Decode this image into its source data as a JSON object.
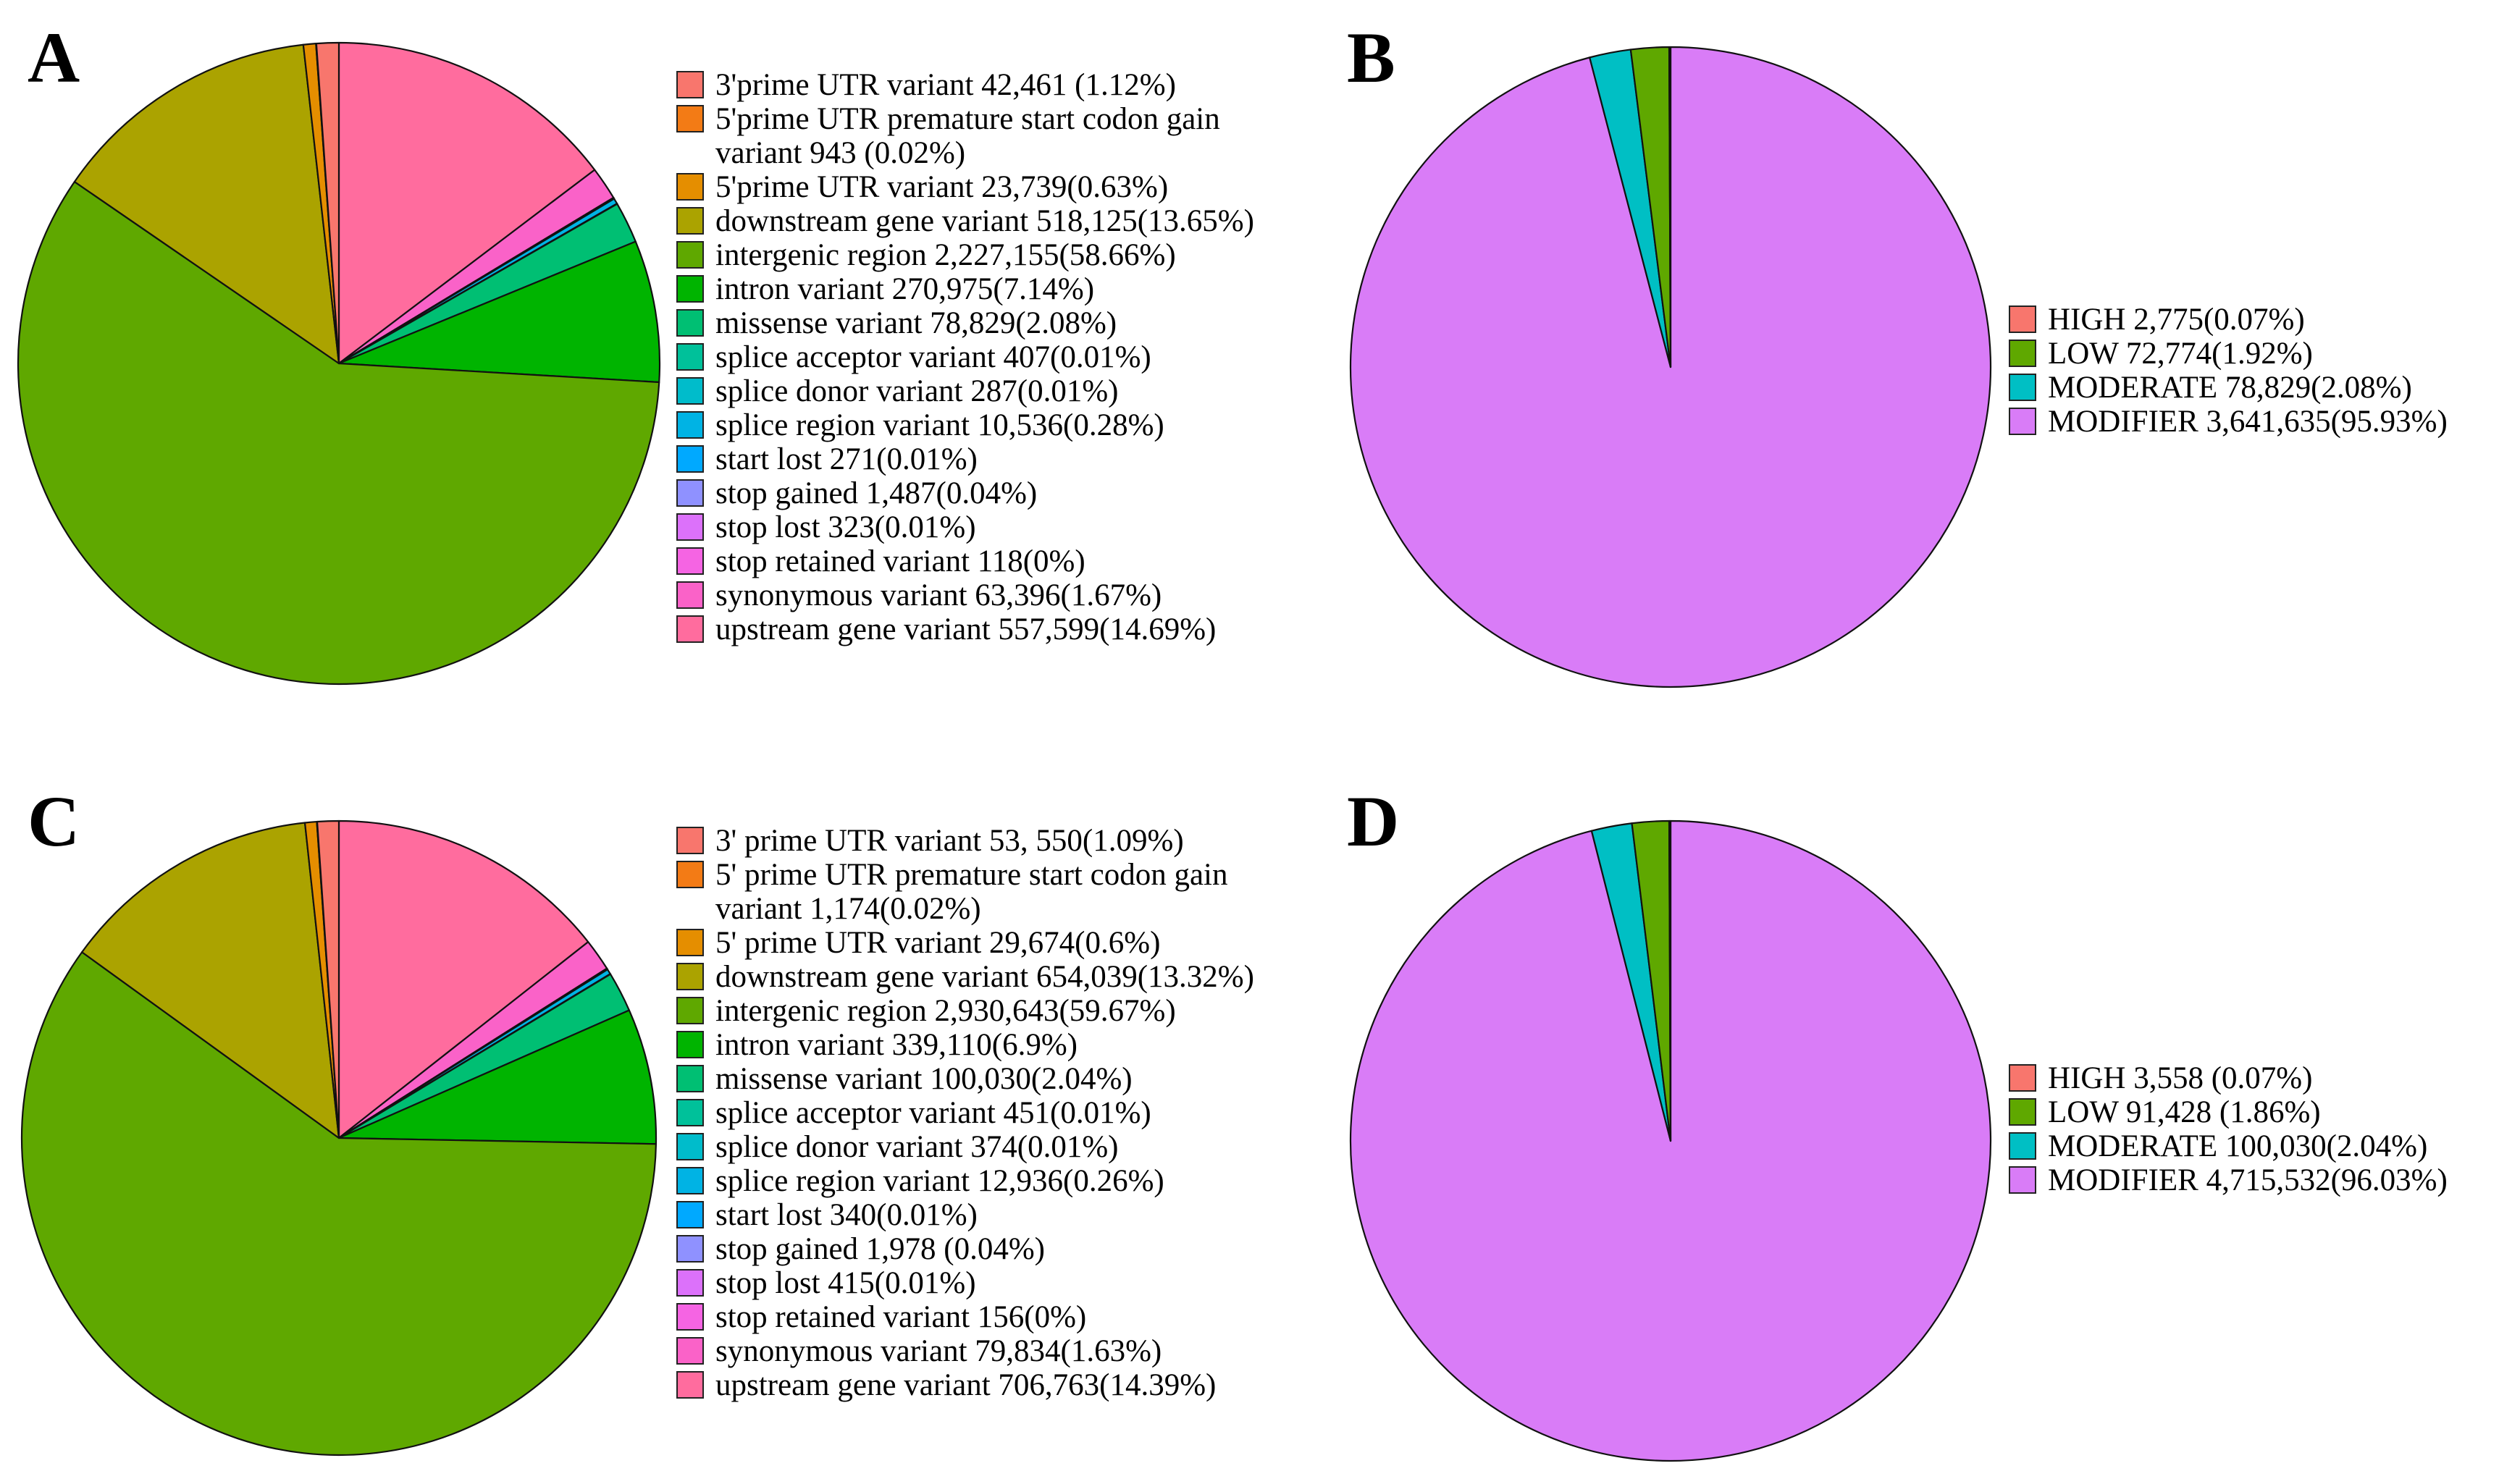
{
  "chart_data": [
    {
      "panel": "A",
      "type": "pie",
      "slices": [
        {
          "label": "3'prime UTR variant 42,461 (1.12%)",
          "value": 1.12,
          "color": "#F8766D"
        },
        {
          "label": "5'prime UTR premature start codon gain variant 943 (0.02%)",
          "value": 0.02,
          "color": "#F37B15"
        },
        {
          "label": "5'prime UTR variant 23,739(0.63%)",
          "value": 0.63,
          "color": "#E58E00"
        },
        {
          "label": "downstream gene variant 518,125(13.65%)",
          "value": 13.65,
          "color": "#ABA300"
        },
        {
          "label": "intergenic region 2,227,155(58.66%)",
          "value": 58.66,
          "color": "#5FA800"
        },
        {
          "label": "intron variant 270,975(7.14%)",
          "value": 7.14,
          "color": "#00B400"
        },
        {
          "label": "missense variant 78,829(2.08%)",
          "value": 2.08,
          "color": "#00BF73"
        },
        {
          "label": "splice acceptor variant 407(0.01%)",
          "value": 0.01,
          "color": "#00C19A"
        },
        {
          "label": "splice donor variant 287(0.01%)",
          "value": 0.01,
          "color": "#00BCCB"
        },
        {
          "label": "splice region variant 10,536(0.28%)",
          "value": 0.28,
          "color": "#00B3E4"
        },
        {
          "label": "start lost 271(0.01%)",
          "value": 0.01,
          "color": "#00A9FF"
        },
        {
          "label": "stop gained 1,487(0.04%)",
          "value": 0.04,
          "color": "#8F91FF"
        },
        {
          "label": "stop lost 323(0.01%)",
          "value": 0.01,
          "color": "#DC71FA"
        },
        {
          "label": "stop retained variant 118(0%)",
          "value": 0.0,
          "color": "#F564E3"
        },
        {
          "label": "synonymous variant 63,396(1.67%)",
          "value": 1.67,
          "color": "#FA62C8"
        },
        {
          "label": "upstream gene variant 557,599(14.69%)",
          "value": 14.69,
          "color": "#FF6C9E"
        }
      ]
    },
    {
      "panel": "B",
      "type": "pie",
      "slices": [
        {
          "label": "HIGH 2,775(0.07%)",
          "value": 0.07,
          "color": "#F8766D"
        },
        {
          "label": "LOW 72,774(1.92%)",
          "value": 1.92,
          "color": "#5FA800"
        },
        {
          "label": "MODERATE 78,829(2.08%)",
          "value": 2.08,
          "color": "#00BFC4"
        },
        {
          "label": "MODIFIER 3,641,635(95.93%)",
          "value": 95.93,
          "color": "#D97CF7"
        }
      ]
    },
    {
      "panel": "C",
      "type": "pie",
      "slices": [
        {
          "label": "3' prime UTR variant 53, 550(1.09%)",
          "value": 1.09,
          "color": "#F8766D"
        },
        {
          "label": "5' prime UTR premature start codon gain variant 1,174(0.02%)",
          "value": 0.02,
          "color": "#F37B15"
        },
        {
          "label": "5' prime UTR variant 29,674(0.6%)",
          "value": 0.6,
          "color": "#E58E00"
        },
        {
          "label": "downstream gene variant 654,039(13.32%)",
          "value": 13.32,
          "color": "#ABA300"
        },
        {
          "label": "intergenic region 2,930,643(59.67%)",
          "value": 59.67,
          "color": "#5FA800"
        },
        {
          "label": "intron variant 339,110(6.9%)",
          "value": 6.9,
          "color": "#00B400"
        },
        {
          "label": "missense variant 100,030(2.04%)",
          "value": 2.04,
          "color": "#00BF73"
        },
        {
          "label": "splice acceptor variant 451(0.01%)",
          "value": 0.01,
          "color": "#00C19A"
        },
        {
          "label": "splice donor variant 374(0.01%)",
          "value": 0.01,
          "color": "#00BCCB"
        },
        {
          "label": "splice region variant 12,936(0.26%)",
          "value": 0.26,
          "color": "#00B3E4"
        },
        {
          "label": "start lost 340(0.01%)",
          "value": 0.01,
          "color": "#00A9FF"
        },
        {
          "label": "stop gained 1,978 (0.04%)",
          "value": 0.04,
          "color": "#8F91FF"
        },
        {
          "label": "stop lost 415(0.01%)",
          "value": 0.01,
          "color": "#DC71FA"
        },
        {
          "label": "stop retained variant 156(0%)",
          "value": 0.0,
          "color": "#F564E3"
        },
        {
          "label": "synonymous variant 79,834(1.63%)",
          "value": 1.63,
          "color": "#FA62C8"
        },
        {
          "label": "upstream gene variant 706,763(14.39%)",
          "value": 14.39,
          "color": "#FF6C9E"
        }
      ]
    },
    {
      "panel": "D",
      "type": "pie",
      "slices": [
        {
          "label": "HIGH 3,558 (0.07%)",
          "value": 0.07,
          "color": "#F8766D"
        },
        {
          "label": "LOW 91,428 (1.86%)",
          "value": 1.86,
          "color": "#5FA800"
        },
        {
          "label": "MODERATE 100,030(2.04%)",
          "value": 2.04,
          "color": "#00BFC4"
        },
        {
          "label": "MODIFIER 4,715,532(96.03%)",
          "value": 96.03,
          "color": "#D97CF7"
        }
      ]
    }
  ]
}
